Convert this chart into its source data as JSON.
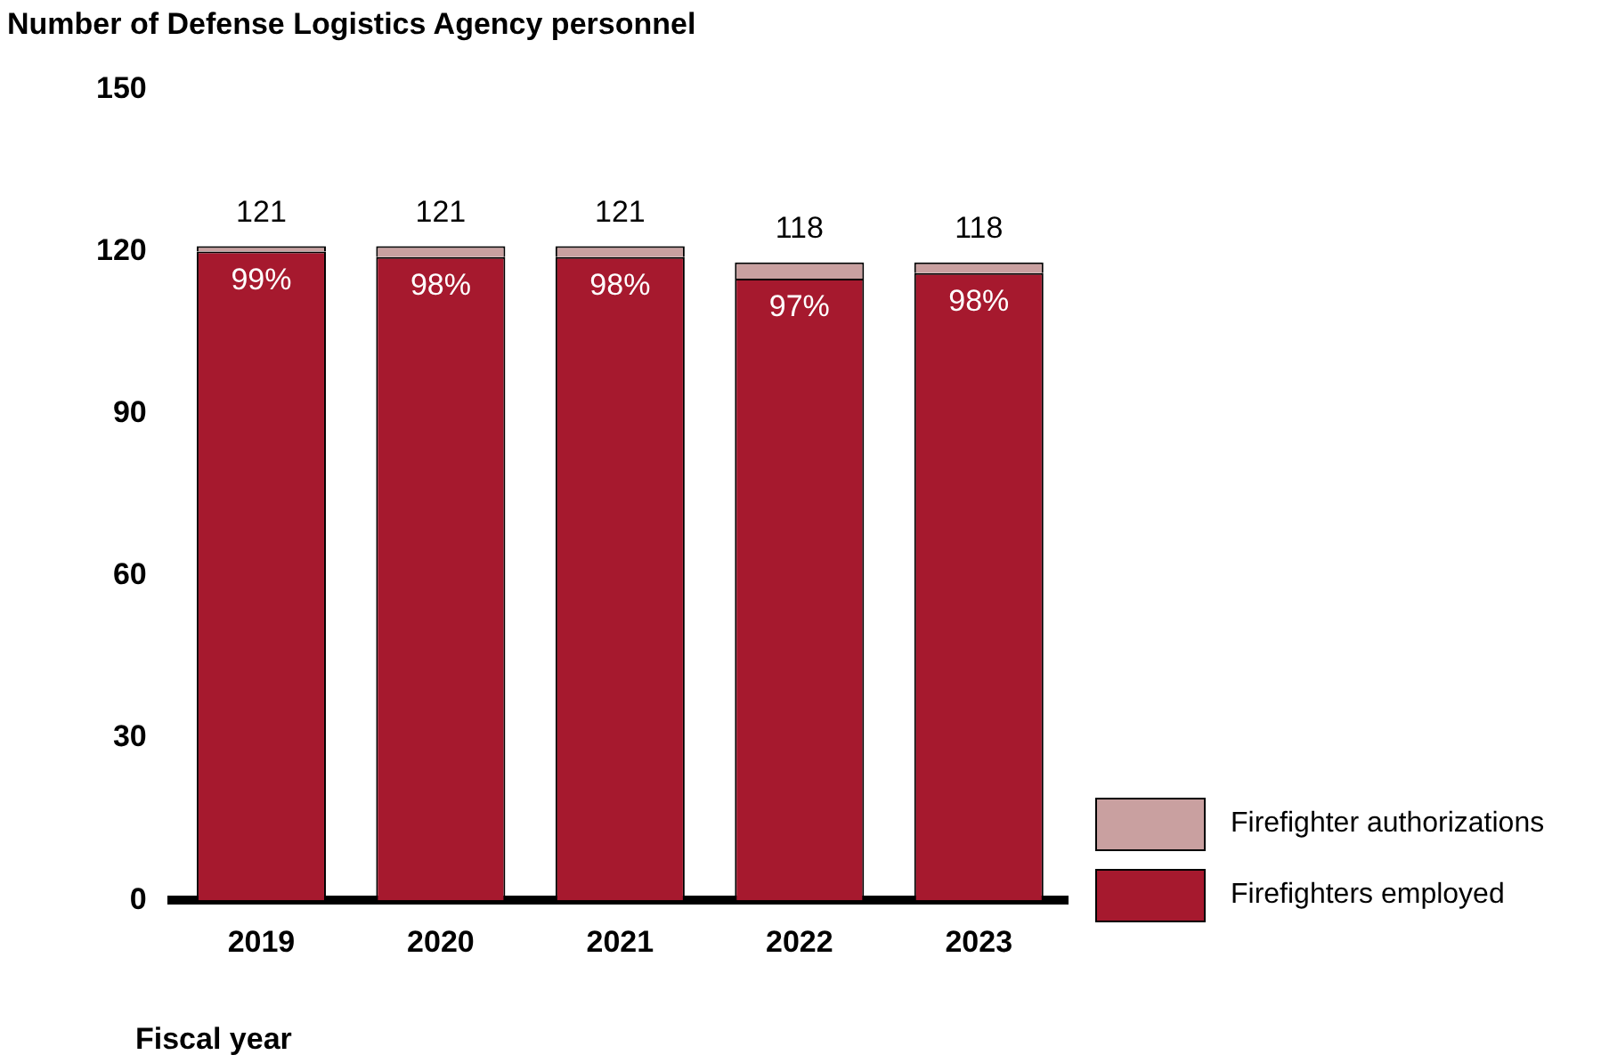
{
  "chart_data": {
    "type": "bar",
    "ylabel": "Number of Defense Logistics Agency personnel",
    "xlabel": "Fiscal year",
    "categories": [
      "2019",
      "2020",
      "2021",
      "2022",
      "2023"
    ],
    "stacked": true,
    "ylim": [
      0,
      150
    ],
    "yticks": [
      0,
      30,
      60,
      90,
      120,
      150
    ],
    "grid": false,
    "legend": "bottom right",
    "series": [
      {
        "name": "Firefighters employed",
        "color": "#a6192e",
        "values": [
          120,
          119,
          119,
          115,
          116
        ]
      },
      {
        "name": "Firefighter authorizations",
        "color": "#c9a0a0",
        "values": [
          1,
          2,
          2,
          3,
          2
        ]
      }
    ],
    "totals": [
      "121",
      "121",
      "121",
      "118",
      "118"
    ],
    "annotations": [
      {
        "text": "99%",
        "x": "2019",
        "y": 120
      },
      {
        "text": "98%",
        "x": "2020",
        "y": 119
      },
      {
        "text": "98%",
        "x": "2021",
        "y": 119
      },
      {
        "text": "97%",
        "x": "2022",
        "y": 115
      },
      {
        "text": "98%",
        "x": "2023",
        "y": 116
      }
    ]
  }
}
